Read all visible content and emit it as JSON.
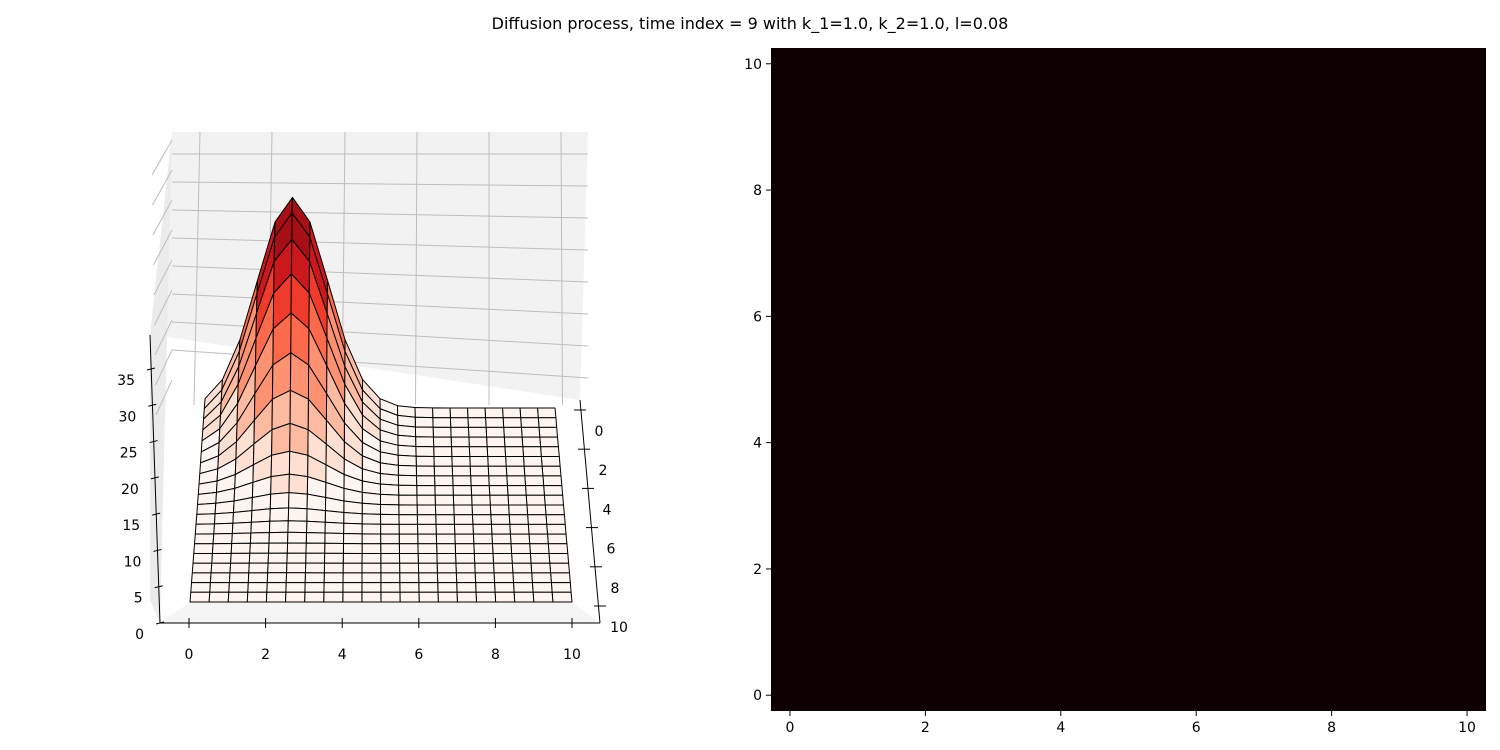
{
  "title": "Diffusion process, time index = 9 with k_1=1.0, k_2=1.0, l=0.08",
  "colors": {
    "pane": "#f2f2f2",
    "grid": "#bdbdbd",
    "wire": "#000000",
    "heatmap_fill": "#0e0000",
    "colormap": [
      "#fff5f0",
      "#fee0d2",
      "#fcbba1",
      "#fc9272",
      "#fb6a4a",
      "#ef3b2c",
      "#cb181d",
      "#a50f15",
      "#67000d"
    ]
  },
  "chart_data": [
    {
      "type": "surface",
      "colormap": "Reds",
      "x": {
        "range": [
          0,
          10
        ],
        "ticks": [
          0,
          2,
          4,
          6,
          8,
          10
        ]
      },
      "y": {
        "range": [
          0,
          10
        ],
        "ticks": [
          0,
          2,
          4,
          6,
          8,
          10
        ]
      },
      "z": {
        "range": [
          0,
          40
        ],
        "ticks": [
          0,
          5,
          10,
          15,
          20,
          25,
          30,
          35
        ]
      },
      "grid_points": 21,
      "peak": {
        "x": 2.5,
        "y": 0,
        "z": 39,
        "sigma_x": 1.0,
        "sigma_y": 2.1
      },
      "grid": true
    },
    {
      "type": "heatmap",
      "x": {
        "range": [
          -0.28,
          10.28
        ],
        "ticks": [
          0,
          2,
          4,
          6,
          8,
          10
        ]
      },
      "y": {
        "range": [
          -0.25,
          10.25
        ],
        "ticks": [
          0,
          2,
          4,
          6,
          8,
          10
        ]
      },
      "value": "uniform"
    }
  ]
}
